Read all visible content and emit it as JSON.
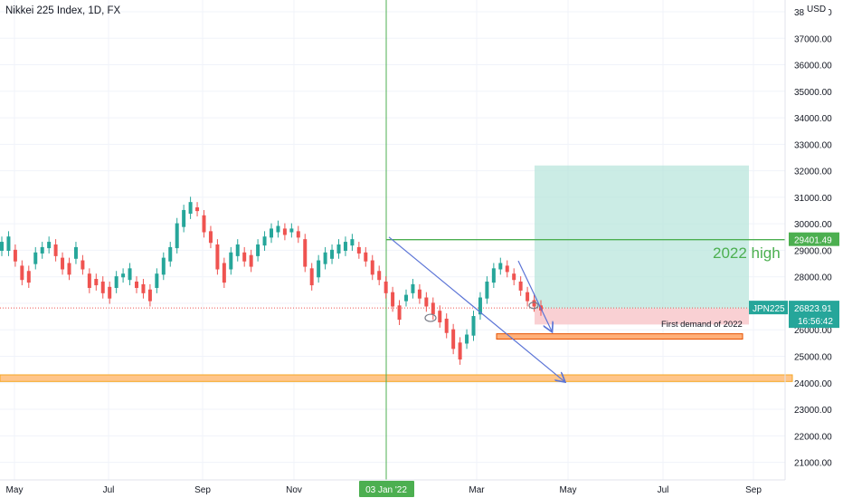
{
  "header": {
    "title": "Nikkei 225 Index, 1D, FX",
    "currency": "USD"
  },
  "chart_data": {
    "type": "candlestick",
    "title": "Nikkei 225 Index, 1D, FX",
    "x_ticks": [
      "May",
      "Jul",
      "Sep",
      "Nov",
      "Mar",
      "May",
      "Jul",
      "Sep"
    ],
    "crosshair_x_label": "03 Jan '22",
    "y_axis": {
      "min": 20500,
      "max": 38000,
      "ticks": [
        "21000.00",
        "22000.00",
        "23000.00",
        "24000.00",
        "25000.00",
        "26000.00",
        "28000.00",
        "29000.00",
        "30000.00",
        "31000.00",
        "32000.00",
        "33000.00",
        "34000.00",
        "35000.00",
        "36000.00",
        "37000.00",
        "38000.00"
      ]
    },
    "price_path": [
      [
        28900,
        29400
      ],
      [
        28900,
        29600
      ],
      [
        28500,
        29100
      ],
      [
        27800,
        28500
      ],
      [
        27700,
        28300
      ],
      [
        28400,
        29000
      ],
      [
        28800,
        29200
      ],
      [
        29000,
        29400
      ],
      [
        28700,
        29300
      ],
      [
        28200,
        28800
      ],
      [
        28000,
        28600
      ],
      [
        28600,
        29200
      ],
      [
        28200,
        28700
      ],
      [
        27500,
        28200
      ],
      [
        27600,
        28000
      ],
      [
        27300,
        27900
      ],
      [
        27100,
        27700
      ],
      [
        27500,
        28100
      ],
      [
        27900,
        28200
      ],
      [
        27800,
        28400
      ],
      [
        27500,
        27900
      ],
      [
        27300,
        27800
      ],
      [
        27000,
        27600
      ],
      [
        27500,
        28200
      ],
      [
        28000,
        28800
      ],
      [
        28500,
        29200
      ],
      [
        29000,
        30100
      ],
      [
        29800,
        30600
      ],
      [
        30300,
        30900
      ],
      [
        30400,
        30700
      ],
      [
        29600,
        30400
      ],
      [
        29200,
        29800
      ],
      [
        28200,
        29300
      ],
      [
        27700,
        28600
      ],
      [
        28200,
        29000
      ],
      [
        28700,
        29300
      ],
      [
        28500,
        29000
      ],
      [
        28300,
        28900
      ],
      [
        28700,
        29300
      ],
      [
        29100,
        29600
      ],
      [
        29400,
        29900
      ],
      [
        29600,
        30000
      ],
      [
        29500,
        29900
      ],
      [
        29600,
        29900
      ],
      [
        29400,
        29800
      ],
      [
        28300,
        29500
      ],
      [
        27600,
        28400
      ],
      [
        27900,
        28700
      ],
      [
        28400,
        29000
      ],
      [
        28600,
        29100
      ],
      [
        28800,
        29300
      ],
      [
        28900,
        29400
      ],
      [
        29100,
        29500
      ],
      [
        28800,
        29200
      ],
      [
        28500,
        29000
      ],
      [
        28000,
        28700
      ],
      [
        27800,
        28300
      ],
      [
        27300,
        27900
      ],
      [
        26800,
        27500
      ],
      [
        26300,
        27000
      ],
      [
        27000,
        27400
      ],
      [
        27300,
        27800
      ],
      [
        27100,
        27600
      ],
      [
        26800,
        27300
      ],
      [
        26500,
        27100
      ],
      [
        26200,
        26800
      ],
      [
        25800,
        26500
      ],
      [
        25200,
        26100
      ],
      [
        24800,
        25600
      ],
      [
        25400,
        25900
      ],
      [
        25700,
        26600
      ],
      [
        26500,
        27300
      ],
      [
        27100,
        27900
      ],
      [
        27700,
        28400
      ],
      [
        28200,
        28600
      ],
      [
        28100,
        28500
      ],
      [
        27800,
        28200
      ],
      [
        27400,
        27900
      ],
      [
        27000,
        27500
      ],
      [
        26800,
        27200
      ],
      [
        26650,
        27000
      ]
    ],
    "horizontal_line": {
      "value": 29401.49,
      "label": "29401.49"
    },
    "last_price": {
      "symbol": "JPN225",
      "value": "26823.91",
      "countdown": "16:56:42"
    },
    "annotations": {
      "year_high": "2022 high",
      "demand_zone": "First demand of 2022"
    },
    "zones": {
      "target_box": [
        26800,
        32200
      ],
      "stop_box": [
        26200,
        26800
      ],
      "demand_upper": [
        25650,
        25850
      ],
      "demand_lower": [
        24050,
        24300
      ]
    },
    "colors": {
      "up": "#26a69a",
      "down": "#ef5350",
      "green_line": "#4caf50",
      "trend_line": "#5b74d6",
      "target_fill": "#b9e5dc",
      "stop_fill": "#f8c8cb",
      "demand_fill": "#ffb07a",
      "demand_lower_fill": "#ffc58a",
      "price_label": "#26a69a",
      "high_label": "#4caf50"
    }
  }
}
